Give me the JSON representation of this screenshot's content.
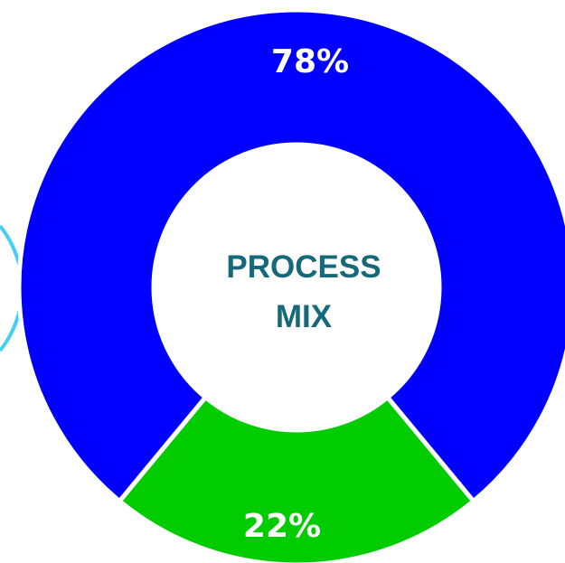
{
  "chart_data": {
    "type": "pie",
    "style": "donut",
    "title": "PROCESS MIX",
    "title_lines": [
      "PROCESS",
      "MIX"
    ],
    "categories": [
      "",
      ""
    ],
    "values": [
      78,
      22
    ],
    "value_labels": [
      "78%",
      "22%"
    ],
    "unit": "%",
    "legend": "none",
    "grid": false
  },
  "colors": {
    "slice_1": "#0000FF",
    "slice_2": "#00CC00",
    "separator": "#ffffff",
    "center_text": "#16697A",
    "edge_ring": "#45D0EE",
    "background": "#ffffff"
  }
}
